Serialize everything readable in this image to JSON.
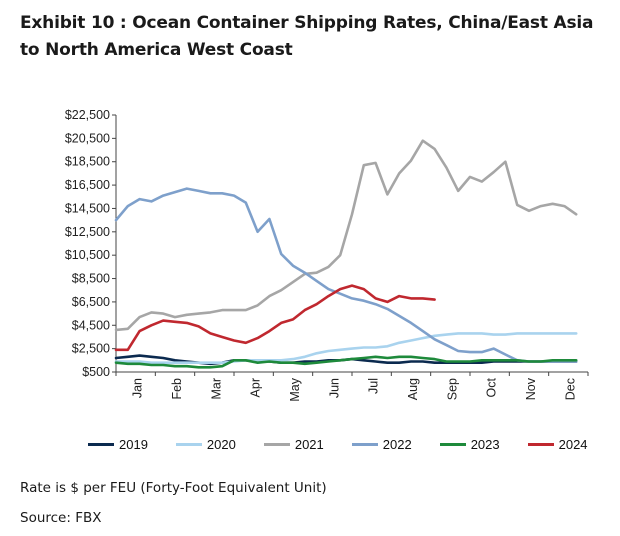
{
  "header": {
    "title": "Exhibit 10 : Ocean Container Shipping Rates, China/East Asia to North America West Coast"
  },
  "chart_data": {
    "type": "line",
    "title": "Exhibit 10 : Ocean Container Shipping Rates, China/East Asia to North America West Coast",
    "xlabel": "",
    "ylabel": "",
    "ylim": [
      500,
      22500
    ],
    "yticks": [
      500,
      2500,
      4500,
      6500,
      8500,
      10500,
      12500,
      14500,
      16500,
      18500,
      20500,
      22500
    ],
    "ytick_labels": [
      "$500",
      "$2,500",
      "$4,500",
      "$6,500",
      "$8,500",
      "$10,500",
      "$12,500",
      "$14,500",
      "$16,500",
      "$18,500",
      "$20,500",
      "$22,500"
    ],
    "xlim": [
      0,
      12
    ],
    "month_labels": [
      "Jan",
      "Feb",
      "Mar",
      "Apr",
      "May",
      "Jun",
      "Jul",
      "Aug",
      "Sep",
      "Oct",
      "Nov",
      "Dec"
    ],
    "grid": false,
    "legend_position": "bottom",
    "series": [
      {
        "name": "2019",
        "color": "#0b2a4f",
        "x": [
          0,
          0.3,
          0.6,
          0.9,
          1.2,
          1.5,
          1.8,
          2.1,
          2.4,
          2.7,
          3.0,
          3.3,
          3.6,
          3.9,
          4.2,
          4.5,
          4.8,
          5.1,
          5.4,
          5.7,
          6.0,
          6.3,
          6.6,
          6.9,
          7.2,
          7.5,
          7.8,
          8.1,
          8.4,
          8.7,
          9.0,
          9.3,
          9.6,
          9.9,
          10.2,
          10.5,
          10.8,
          11.1,
          11.4,
          11.7
        ],
        "values": [
          1700,
          1800,
          1900,
          1800,
          1700,
          1500,
          1400,
          1300,
          1200,
          1300,
          1500,
          1500,
          1400,
          1400,
          1300,
          1300,
          1400,
          1400,
          1500,
          1500,
          1600,
          1500,
          1400,
          1300,
          1300,
          1400,
          1400,
          1300,
          1300,
          1300,
          1300,
          1300,
          1400,
          1400,
          1400,
          1400,
          1400,
          1400,
          1400,
          1400
        ]
      },
      {
        "name": "2020",
        "color": "#a9d3ee",
        "x": [
          0,
          0.3,
          0.6,
          0.9,
          1.2,
          1.5,
          1.8,
          2.1,
          2.4,
          2.7,
          3.0,
          3.3,
          3.6,
          3.9,
          4.2,
          4.5,
          4.8,
          5.1,
          5.4,
          5.7,
          6.0,
          6.3,
          6.6,
          6.9,
          7.2,
          7.5,
          7.8,
          8.1,
          8.4,
          8.7,
          9.0,
          9.3,
          9.6,
          9.9,
          10.2,
          10.5,
          10.8,
          11.1,
          11.4,
          11.7
        ],
        "values": [
          1400,
          1400,
          1400,
          1300,
          1300,
          1300,
          1300,
          1300,
          1300,
          1300,
          1400,
          1500,
          1500,
          1500,
          1500,
          1600,
          1800,
          2100,
          2300,
          2400,
          2500,
          2600,
          2600,
          2700,
          3000,
          3200,
          3400,
          3600,
          3700,
          3800,
          3800,
          3800,
          3700,
          3700,
          3800,
          3800,
          3800,
          3800,
          3800,
          3800
        ]
      },
      {
        "name": "2021",
        "color": "#a6a6a6",
        "x": [
          0,
          0.3,
          0.6,
          0.9,
          1.2,
          1.5,
          1.8,
          2.1,
          2.4,
          2.7,
          3.0,
          3.3,
          3.6,
          3.9,
          4.2,
          4.5,
          4.8,
          5.1,
          5.4,
          5.7,
          6.0,
          6.3,
          6.6,
          6.9,
          7.2,
          7.5,
          7.8,
          8.1,
          8.4,
          8.7,
          9.0,
          9.3,
          9.6,
          9.9,
          10.2,
          10.5,
          10.8,
          11.1,
          11.4,
          11.7
        ],
        "values": [
          4100,
          4200,
          5200,
          5600,
          5500,
          5200,
          5400,
          5500,
          5600,
          5800,
          5800,
          5800,
          6200,
          7000,
          7500,
          8200,
          8900,
          9000,
          9500,
          10500,
          14000,
          18200,
          18400,
          15700,
          17500,
          18600,
          20300,
          19600,
          18000,
          16000,
          17200,
          16800,
          17600,
          18500,
          14800,
          14300,
          14700,
          14900,
          14700,
          14000
        ]
      },
      {
        "name": "2022",
        "color": "#7ea0cb",
        "x": [
          0,
          0.3,
          0.6,
          0.9,
          1.2,
          1.5,
          1.8,
          2.1,
          2.4,
          2.7,
          3.0,
          3.3,
          3.6,
          3.9,
          4.2,
          4.5,
          4.8,
          5.1,
          5.4,
          5.7,
          6.0,
          6.3,
          6.6,
          6.9,
          7.2,
          7.5,
          7.8,
          8.1,
          8.4,
          8.7,
          9.0,
          9.3,
          9.6,
          9.9,
          10.2,
          10.5,
          10.8,
          11.1,
          11.4,
          11.7
        ],
        "values": [
          13500,
          14700,
          15300,
          15100,
          15600,
          15900,
          16200,
          16000,
          15800,
          15800,
          15600,
          15000,
          12500,
          13600,
          10600,
          9600,
          9000,
          8300,
          7600,
          7200,
          6800,
          6600,
          6300,
          5900,
          5300,
          4700,
          4000,
          3300,
          2800,
          2300,
          2200,
          2200,
          2500,
          2000,
          1500,
          1400,
          1400,
          1400,
          1400,
          1400
        ]
      },
      {
        "name": "2023",
        "color": "#1e8a3b",
        "x": [
          0,
          0.3,
          0.6,
          0.9,
          1.2,
          1.5,
          1.8,
          2.1,
          2.4,
          2.7,
          3.0,
          3.3,
          3.6,
          3.9,
          4.2,
          4.5,
          4.8,
          5.1,
          5.4,
          5.7,
          6.0,
          6.3,
          6.6,
          6.9,
          7.2,
          7.5,
          7.8,
          8.1,
          8.4,
          8.7,
          9.0,
          9.3,
          9.6,
          9.9,
          10.2,
          10.5,
          10.8,
          11.1,
          11.4,
          11.7
        ],
        "values": [
          1300,
          1200,
          1200,
          1100,
          1100,
          1000,
          1000,
          900,
          900,
          1000,
          1500,
          1500,
          1300,
          1400,
          1300,
          1300,
          1200,
          1300,
          1400,
          1500,
          1600,
          1700,
          1800,
          1700,
          1800,
          1800,
          1700,
          1600,
          1400,
          1400,
          1400,
          1500,
          1500,
          1500,
          1500,
          1400,
          1400,
          1500,
          1500,
          1500
        ]
      },
      {
        "name": "2024",
        "color": "#c0282f",
        "x": [
          0,
          0.3,
          0.6,
          0.9,
          1.2,
          1.5,
          1.8,
          2.1,
          2.4,
          2.7,
          3.0,
          3.3,
          3.6,
          3.9,
          4.2,
          4.5,
          4.8,
          5.1,
          5.4,
          5.7,
          6.0,
          6.3,
          6.6,
          6.9,
          7.2,
          7.5,
          7.8,
          8.1
        ],
        "values": [
          2400,
          2400,
          4000,
          4500,
          4900,
          4800,
          4700,
          4400,
          3800,
          3500,
          3200,
          3000,
          3400,
          4000,
          4700,
          5000,
          5800,
          6300,
          7000,
          7600,
          7900,
          7600,
          6800,
          6500,
          7000,
          6800,
          6800,
          6700
        ]
      }
    ]
  },
  "footer": {
    "note": "Rate is $ per FEU (Forty-Foot Equivalent Unit)",
    "source": "Source: FBX"
  }
}
